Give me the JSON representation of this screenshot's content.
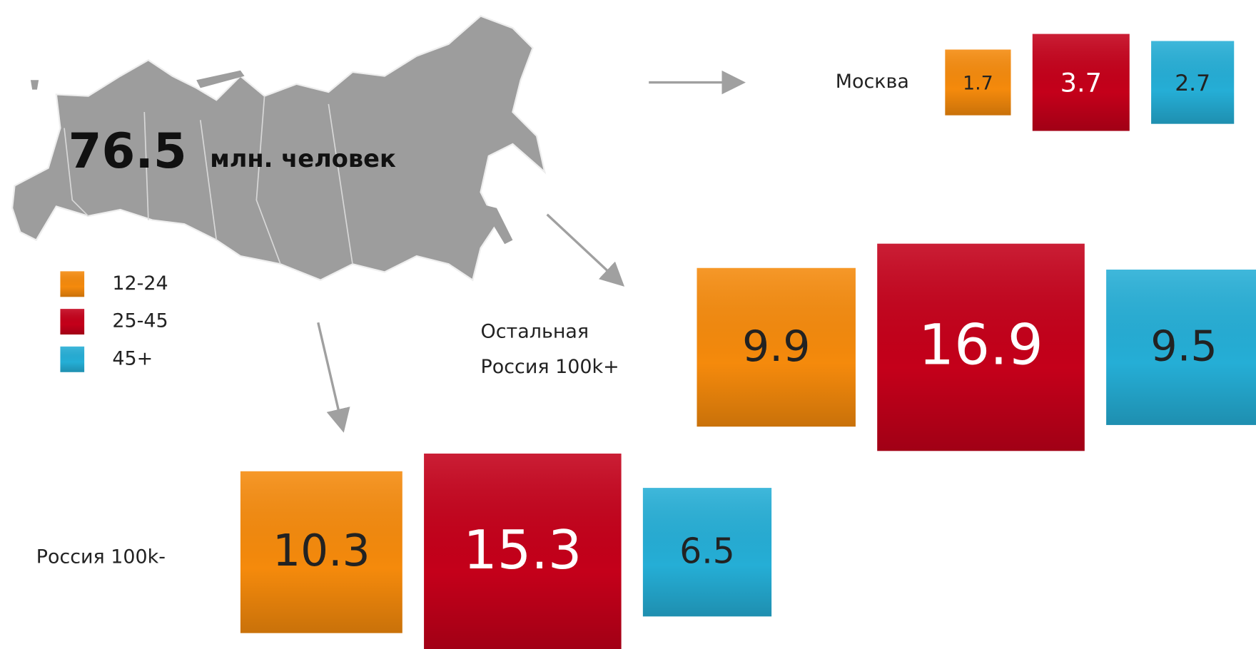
{
  "chart_data": {
    "type": "proportional-squares",
    "title": "76.5",
    "subtitle": "млн. человек",
    "categories": [
      "Москва",
      "Остальная Россия 100k+",
      "Россия 100k-"
    ],
    "series": [
      {
        "name": "12-24",
        "color": "#f58a0c",
        "values": [
          1.7,
          9.9,
          10.3
        ]
      },
      {
        "name": "25-45",
        "color": "#c4001a",
        "values": [
          3.7,
          16.9,
          15.3
        ]
      },
      {
        "name": "45+",
        "color": "#25aed6",
        "values": [
          2.7,
          9.5,
          6.5
        ]
      }
    ]
  }
}
